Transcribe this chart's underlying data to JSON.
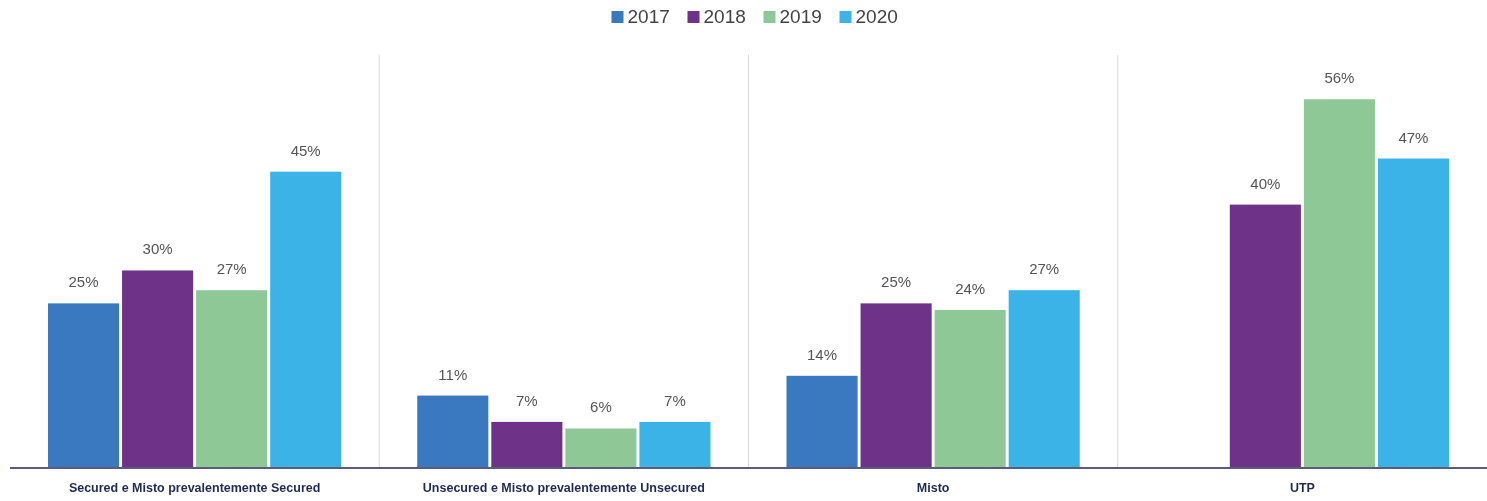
{
  "chart_data": {
    "type": "bar",
    "categories": [
      "Secured e Misto prevalentemente Secured",
      "Unsecured e Misto prevalentemente Unsecured",
      "Misto",
      "UTP"
    ],
    "series": [
      {
        "name": "2017",
        "color": "#3a78c0",
        "values": [
          25,
          11,
          14,
          null
        ],
        "value_labels": [
          "25%",
          "11%",
          "14%",
          null
        ]
      },
      {
        "name": "2018",
        "color": "#6f3289",
        "values": [
          30,
          7,
          25,
          40
        ],
        "value_labels": [
          "30%",
          "7%",
          "25%",
          "40%"
        ]
      },
      {
        "name": "2019",
        "color": "#8dc896",
        "values": [
          27,
          6,
          24,
          56
        ],
        "value_labels": [
          "27%",
          "6%",
          "24%",
          "56%"
        ]
      },
      {
        "name": "2020",
        "color": "#3cb3e6",
        "values": [
          45,
          7,
          27,
          47
        ],
        "value_labels": [
          "45%",
          "7%",
          "27%",
          "47%"
        ]
      }
    ],
    "legend": "top",
    "grid": "x"
  }
}
